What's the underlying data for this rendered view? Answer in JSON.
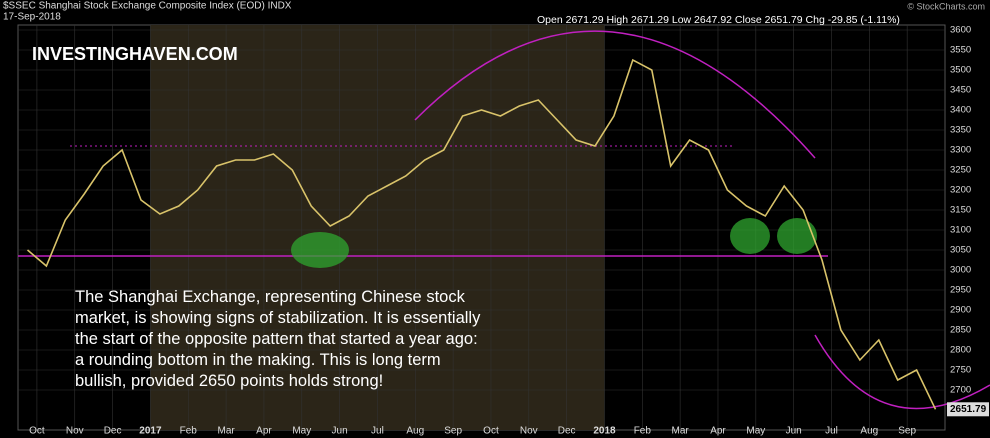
{
  "chart_data": {
    "type": "line",
    "title": "$SSEC Shanghai Stock Exchange Composite Index (EOD) INDX",
    "date": "17-Sep-2018",
    "quote": "Open 2671.29 High 2671.29 Low 2647.92 Close 2651.79 Chg -29.85 (-1.11%)",
    "credit": "© StockCharts.com",
    "watermark": "INVESTINGHAVEN.COM",
    "annotation": [
      "The Shanghai Exchange, representing Chinese stock",
      "market, is showing signs of stabilization. It is essentially",
      "the start of the opposite pattern that started a year ago:",
      "a rounding bottom in the making. This is long term",
      "bullish, provided 2650 points holds strong!"
    ],
    "categories": [
      null,
      "Oct",
      null,
      "Nov",
      null,
      "Dec",
      null,
      "2017",
      null,
      "Feb",
      null,
      "Mar",
      null,
      "Apr",
      null,
      "May",
      null,
      "Jun",
      null,
      "Jul",
      null,
      "Aug",
      null,
      "Sep",
      null,
      "Oct",
      null,
      "Nov",
      null,
      "Dec",
      null,
      "2018",
      null,
      "Feb",
      null,
      "Mar",
      null,
      "Apr",
      null,
      "May",
      null,
      "Jun",
      null,
      "Jul",
      null,
      "Aug",
      null,
      "Sep",
      null
    ],
    "series": [
      {
        "color": "#d9c36a",
        "values": [
          3050,
          3010,
          3125,
          3190,
          3260,
          3300,
          3175,
          3140,
          3160,
          3200,
          3260,
          3275,
          3275,
          3290,
          3250,
          3160,
          3110,
          3135,
          3185,
          3210,
          3235,
          3275,
          3300,
          3385,
          3400,
          3385,
          3410,
          3425,
          3375,
          3325,
          3310,
          3385,
          3525,
          3500,
          3260,
          3325,
          3300,
          3200,
          3160,
          3135,
          3210,
          3150,
          3025,
          2850,
          2775,
          2825,
          2725,
          2750,
          2651.79
        ]
      }
    ],
    "last_value": 2651.79,
    "support": 3035,
    "resistance": 3310,
    "ylim": [
      2600,
      3612.5
    ],
    "yticks": [
      2700,
      2750,
      2800,
      2850,
      2900,
      2950,
      3000,
      3050,
      3100,
      3150,
      3200,
      3250,
      3300,
      3350,
      3400,
      3450,
      3500,
      3550,
      3600
    ],
    "grid": true
  }
}
